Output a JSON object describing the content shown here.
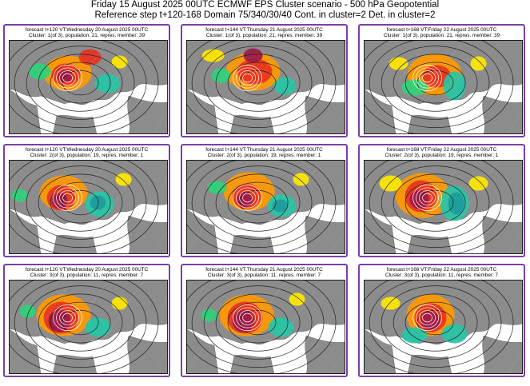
{
  "header": {
    "line1": "Friday 15 August 2025 00UTC ECMWF EPS Cluster scenario - 500 hPa Geopotential",
    "line2": "Reference step t+120-168 Domain 75/340/30/40 Cont. in cluster=2 Det. in cluster=2"
  },
  "panels": [
    {
      "title": "forecast t+120 VT:Wednesday 20 August 2025 00UTC",
      "subtitle": "Cluster: 1(of 3), population: 21, repres. member: 39"
    },
    {
      "title": "forecast t+144 VT:Thursday 21 August 2025 00UTC",
      "subtitle": "Cluster: 1(of 3), population: 21, repres. member: 39"
    },
    {
      "title": "forecast t+168 VT:Friday 22 August 2025 00UTC",
      "subtitle": "Cluster: 1(of 3), population: 21, repres. member: 39"
    },
    {
      "title": "forecast t+120 VT:Wednesday 20 August 2025 00UTC",
      "subtitle": "Cluster: 2(of 3), population: 19, repres. member: 1"
    },
    {
      "title": "forecast t+144 VT:Thursday 21 August 2025 00UTC",
      "subtitle": "Cluster: 2(of 3), population: 19, repres. member: 1"
    },
    {
      "title": "forecast t+168 VT:Friday 22 August 2025 00UTC",
      "subtitle": "Cluster: 2(of 3), population: 19, repres. member: 1"
    },
    {
      "title": "forecast t+120 VT:Wednesday 20 August 2025 00UTC",
      "subtitle": "Cluster: 3(of 3), population: 11, repres. member: 7"
    },
    {
      "title": "forecast t+144 VT:Thursday 21 August 2025 00UTC",
      "subtitle": "Cluster: 3(of 3), population: 11, repres. member: 7"
    },
    {
      "title": "forecast t+168 VT:Friday 22 August 2025 00UTC",
      "subtitle": "Cluster: 3(of 3), population: 11, repres. member: 7"
    }
  ],
  "colors": {
    "frame": "#7b3fa3",
    "land": "#8c8c8c",
    "sea": "#ffffff",
    "positive_weak": "#ffe800",
    "positive_mid": "#ff9900",
    "positive_strong": "#e8321e",
    "positive_max": "#9b1a4a",
    "negative_weak": "#2ed37a",
    "negative_mid": "#27c6a6",
    "negative_strong": "#1d9b9b"
  }
}
